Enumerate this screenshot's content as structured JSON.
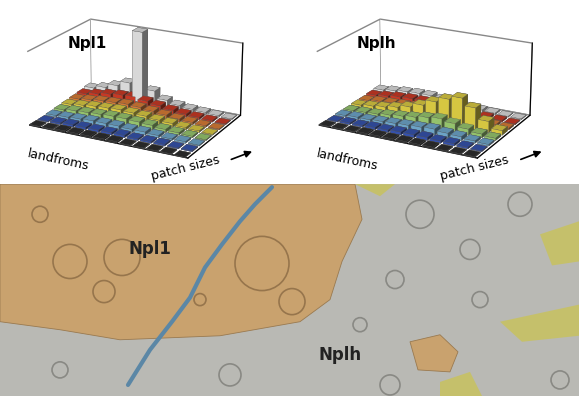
{
  "chart_data": [
    {
      "type": "bar3d",
      "title": "Npl1",
      "x_label": "patch sizes",
      "y_label": "landfroms",
      "tick_labels": false,
      "zlim": [
        0,
        100
      ],
      "colors": [
        "#f4f4f4",
        "#e0402a",
        "#f08a3c",
        "#f2e04a",
        "#a8dc7a",
        "#7ab8e0",
        "#3c5cc0",
        "#333333"
      ],
      "values": [
        [
          8,
          12,
          18,
          25,
          100,
          20,
          10,
          6,
          4,
          3,
          2,
          1
        ],
        [
          6,
          9,
          12,
          14,
          15,
          12,
          9,
          6,
          4,
          3,
          2,
          1
        ],
        [
          5,
          7,
          9,
          10,
          11,
          10,
          8,
          6,
          4,
          3,
          2,
          1
        ],
        [
          4,
          6,
          8,
          9,
          10,
          9,
          8,
          6,
          5,
          3,
          2,
          1
        ],
        [
          3,
          5,
          6,
          7,
          8,
          8,
          7,
          6,
          4,
          3,
          2,
          1
        ],
        [
          2,
          3,
          4,
          5,
          5,
          5,
          4,
          4,
          3,
          2,
          2,
          1
        ],
        [
          1,
          2,
          3,
          3,
          3,
          3,
          3,
          2,
          2,
          2,
          1,
          1
        ],
        [
          1,
          1,
          2,
          2,
          2,
          2,
          2,
          1,
          1,
          1,
          1,
          0
        ]
      ]
    },
    {
      "type": "bar3d",
      "title": "Nplh",
      "x_label": "patch sizes",
      "y_label": "landfroms",
      "tick_labels": false,
      "zlim": [
        0,
        100
      ],
      "colors": [
        "#f4f4f4",
        "#e0402a",
        "#f08a3c",
        "#f2e04a",
        "#a8dc7a",
        "#7ab8e0",
        "#3c5cc0",
        "#333333"
      ],
      "values": [
        [
          5,
          7,
          9,
          10,
          10,
          8,
          6,
          4,
          3,
          2,
          1,
          1
        ],
        [
          4,
          6,
          8,
          9,
          9,
          8,
          7,
          5,
          4,
          3,
          2,
          1
        ],
        [
          3,
          5,
          6,
          7,
          8,
          8,
          7,
          6,
          5,
          4,
          3,
          2
        ],
        [
          3,
          5,
          7,
          10,
          14,
          20,
          28,
          35,
          40,
          30,
          15,
          6
        ],
        [
          2,
          3,
          4,
          6,
          8,
          10,
          13,
          15,
          12,
          8,
          5,
          3
        ],
        [
          2,
          3,
          3,
          4,
          5,
          6,
          7,
          8,
          6,
          5,
          3,
          2
        ],
        [
          1,
          2,
          2,
          3,
          3,
          4,
          4,
          4,
          3,
          3,
          2,
          1
        ],
        [
          1,
          1,
          1,
          2,
          2,
          2,
          2,
          2,
          2,
          1,
          1,
          1
        ]
      ]
    }
  ],
  "map": {
    "units": [
      {
        "label": "Npl1",
        "color": "#c9a26e"
      },
      {
        "label": "Nplh",
        "color": "#b9b9b4"
      }
    ]
  }
}
